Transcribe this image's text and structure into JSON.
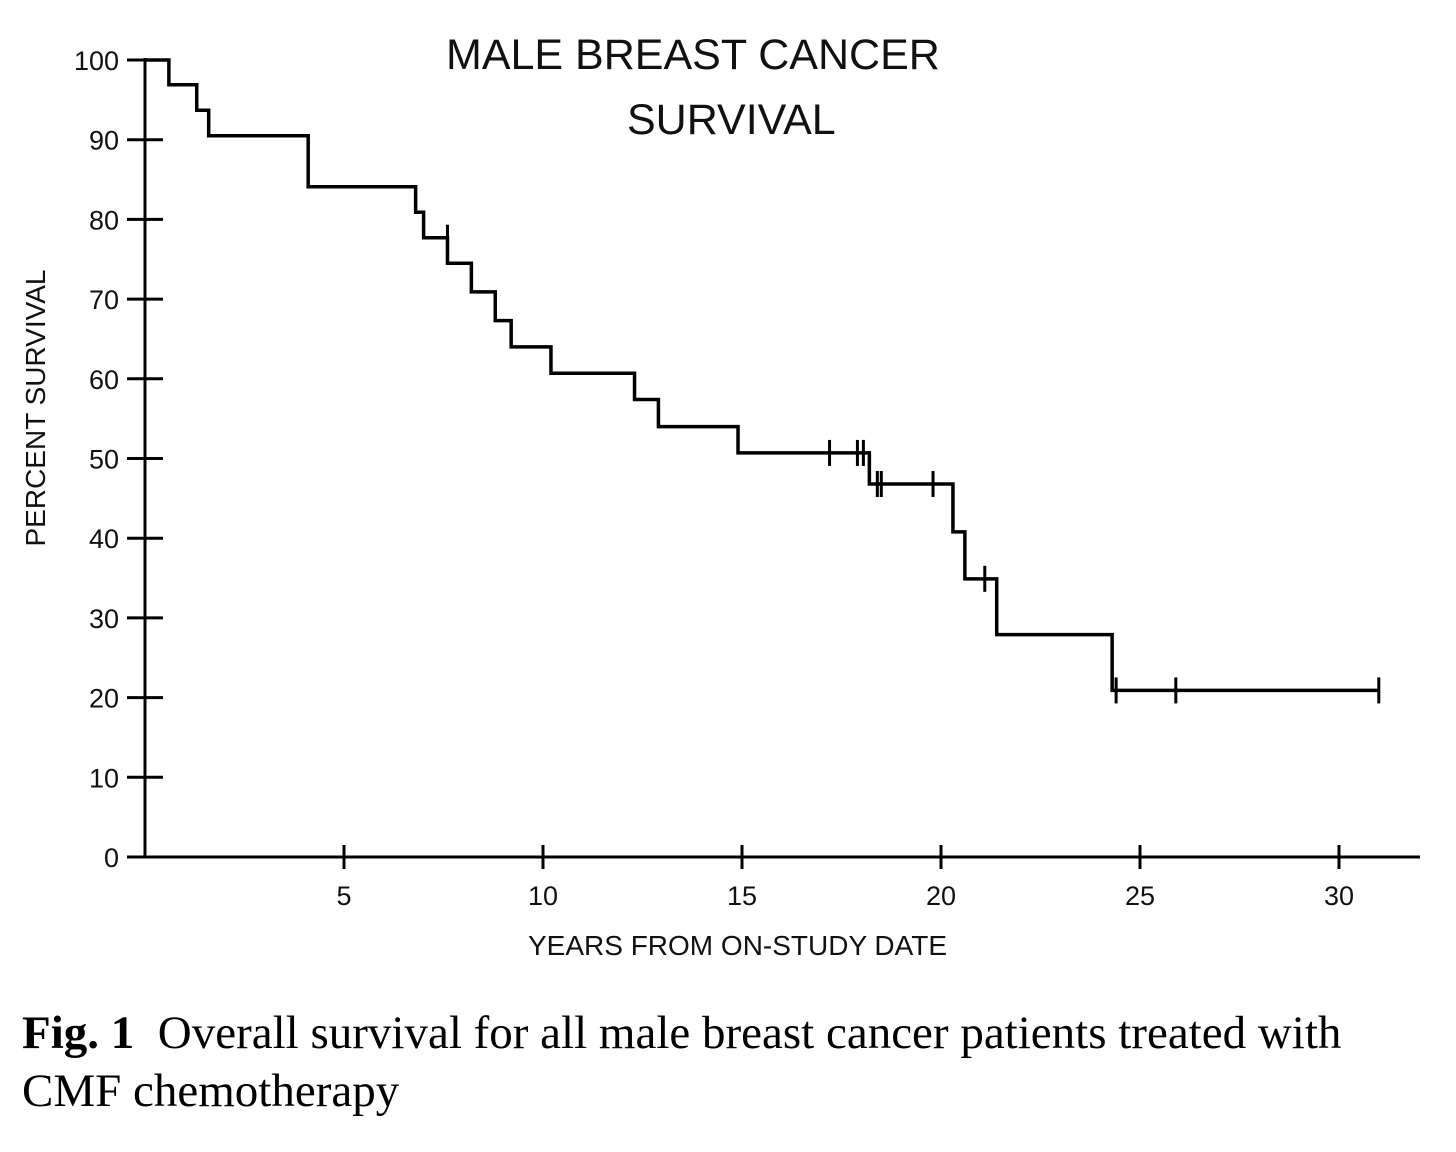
{
  "chart_data": {
    "type": "line",
    "subtype": "kaplan-meier-step",
    "title_line1": "MALE BREAST CANCER",
    "title_line2": "SURVIVAL",
    "xlabel": "YEARS FROM ON-STUDY DATE",
    "ylabel": "PERCENT SURVIVAL",
    "xlim": [
      0,
      32
    ],
    "ylim": [
      0,
      100
    ],
    "x_ticks": [
      5,
      10,
      15,
      20,
      25,
      30
    ],
    "y_ticks": [
      0,
      10,
      20,
      30,
      40,
      50,
      60,
      70,
      80,
      90,
      100
    ],
    "grid": false,
    "line_color": "#000000",
    "series": [
      {
        "steps": [
          {
            "x": 0,
            "y": 100
          },
          {
            "x": 0.6,
            "y": 96.9
          },
          {
            "x": 1.3,
            "y": 93.7
          },
          {
            "x": 1.6,
            "y": 90.5
          },
          {
            "x": 4.1,
            "y": 87.3
          },
          {
            "x": 4.1,
            "y": 84.1
          },
          {
            "x": 6.8,
            "y": 80.9
          },
          {
            "x": 7.0,
            "y": 77.7
          },
          {
            "x": 7.6,
            "y": 74.5
          },
          {
            "x": 8.2,
            "y": 70.9
          },
          {
            "x": 8.8,
            "y": 67.3
          },
          {
            "x": 9.2,
            "y": 64.0
          },
          {
            "x": 10.2,
            "y": 60.7
          },
          {
            "x": 12.3,
            "y": 57.4
          },
          {
            "x": 12.9,
            "y": 54.0
          },
          {
            "x": 14.9,
            "y": 50.7
          },
          {
            "x": 18.2,
            "y": 46.8
          },
          {
            "x": 20.3,
            "y": 40.8
          },
          {
            "x": 20.6,
            "y": 34.9
          },
          {
            "x": 21.4,
            "y": 27.9
          },
          {
            "x": 24.3,
            "y": 20.9
          }
        ],
        "x_end": 31.0,
        "censored": [
          {
            "x": 7.6,
            "y": 77.7
          },
          {
            "x": 17.2,
            "y": 50.7
          },
          {
            "x": 17.9,
            "y": 50.7
          },
          {
            "x": 18.05,
            "y": 50.7
          },
          {
            "x": 18.4,
            "y": 46.8
          },
          {
            "x": 18.5,
            "y": 46.8
          },
          {
            "x": 19.8,
            "y": 46.8
          },
          {
            "x": 21.1,
            "y": 34.9
          },
          {
            "x": 24.4,
            "y": 20.9
          },
          {
            "x": 25.9,
            "y": 20.9
          },
          {
            "x": 31.0,
            "y": 20.9
          }
        ]
      }
    ]
  },
  "caption": {
    "label": "Fig. 1",
    "text": "Overall survival for all male breast cancer patients treated with CMF chemotherapy"
  }
}
